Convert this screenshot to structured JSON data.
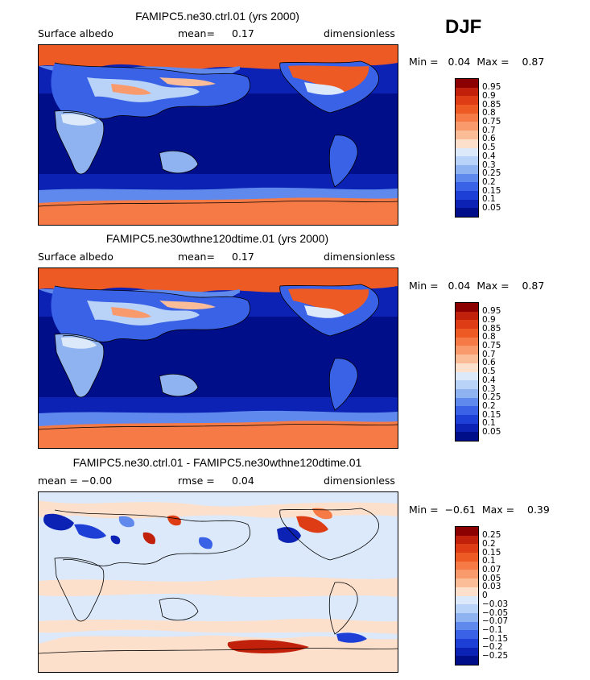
{
  "season": "DJF",
  "panels": [
    {
      "title": "FAMIPC5.ne30.ctrl.01 (yrs 2000)",
      "left_label": "Surface albedo",
      "mid_label": "mean=",
      "mid_value": "0.17",
      "units": "dimensionless",
      "minmax": "Min =   0.04  Max =    0.87",
      "colorbar": {
        "levels": [
          "0.95",
          "0.9",
          "0.85",
          "0.8",
          "0.75",
          "0.7",
          "0.6",
          "0.5",
          "0.4",
          "0.3",
          "0.25",
          "0.2",
          "0.15",
          "0.1",
          "0.05"
        ],
        "colors": [
          "#8b0000",
          "#c1200a",
          "#dd3c14",
          "#ee5a24",
          "#f57a45",
          "#f99a6c",
          "#fbbc98",
          "#fde0cc",
          "#dbe9fb",
          "#b9d2f7",
          "#8fb2f1",
          "#5f89ec",
          "#3a62e6",
          "#1e3fd6",
          "#0b22b5",
          "#000e8a"
        ]
      }
    },
    {
      "title": "FAMIPC5.ne30wthne120dtime.01 (yrs 2000)",
      "left_label": "Surface albedo",
      "mid_label": "mean=",
      "mid_value": "0.17",
      "units": "dimensionless",
      "minmax": "Min =   0.04  Max =    0.87",
      "colorbar": {
        "levels": [
          "0.95",
          "0.9",
          "0.85",
          "0.8",
          "0.75",
          "0.7",
          "0.6",
          "0.5",
          "0.4",
          "0.3",
          "0.25",
          "0.2",
          "0.15",
          "0.1",
          "0.05"
        ],
        "colors": [
          "#8b0000",
          "#c1200a",
          "#dd3c14",
          "#ee5a24",
          "#f57a45",
          "#f99a6c",
          "#fbbc98",
          "#fde0cc",
          "#dbe9fb",
          "#b9d2f7",
          "#8fb2f1",
          "#5f89ec",
          "#3a62e6",
          "#1e3fd6",
          "#0b22b5",
          "#000e8a"
        ]
      }
    },
    {
      "title": "FAMIPC5.ne30.ctrl.01 - FAMIPC5.ne30wthne120dtime.01",
      "left_label": "mean =  −0.00",
      "mid_label": "rmse =",
      "mid_value": "0.04",
      "units": "dimensionless",
      "minmax": "Min =  −0.61  Max =    0.39",
      "colorbar": {
        "levels": [
          "0.25",
          "0.2",
          "0.15",
          "0.1",
          "0.07",
          "0.05",
          "0.03",
          "0",
          "−0.03",
          "−0.05",
          "−0.07",
          "−0.1",
          "−0.15",
          "−0.2",
          "−0.25"
        ],
        "colors": [
          "#8b0000",
          "#c1200a",
          "#dd3c14",
          "#ee5a24",
          "#f57a45",
          "#f99a6c",
          "#fbbc98",
          "#fde0cc",
          "#dbe9fb",
          "#b9d2f7",
          "#8fb2f1",
          "#5f89ec",
          "#3a62e6",
          "#1e3fd6",
          "#0b22b5",
          "#000e8a"
        ]
      }
    }
  ],
  "colors": {
    "ocean_deep": "#0b22b5",
    "sea_ice": "#ee5a24",
    "diff_neutral": "#dbe9fb",
    "diff_warm": "#fde0cc"
  }
}
